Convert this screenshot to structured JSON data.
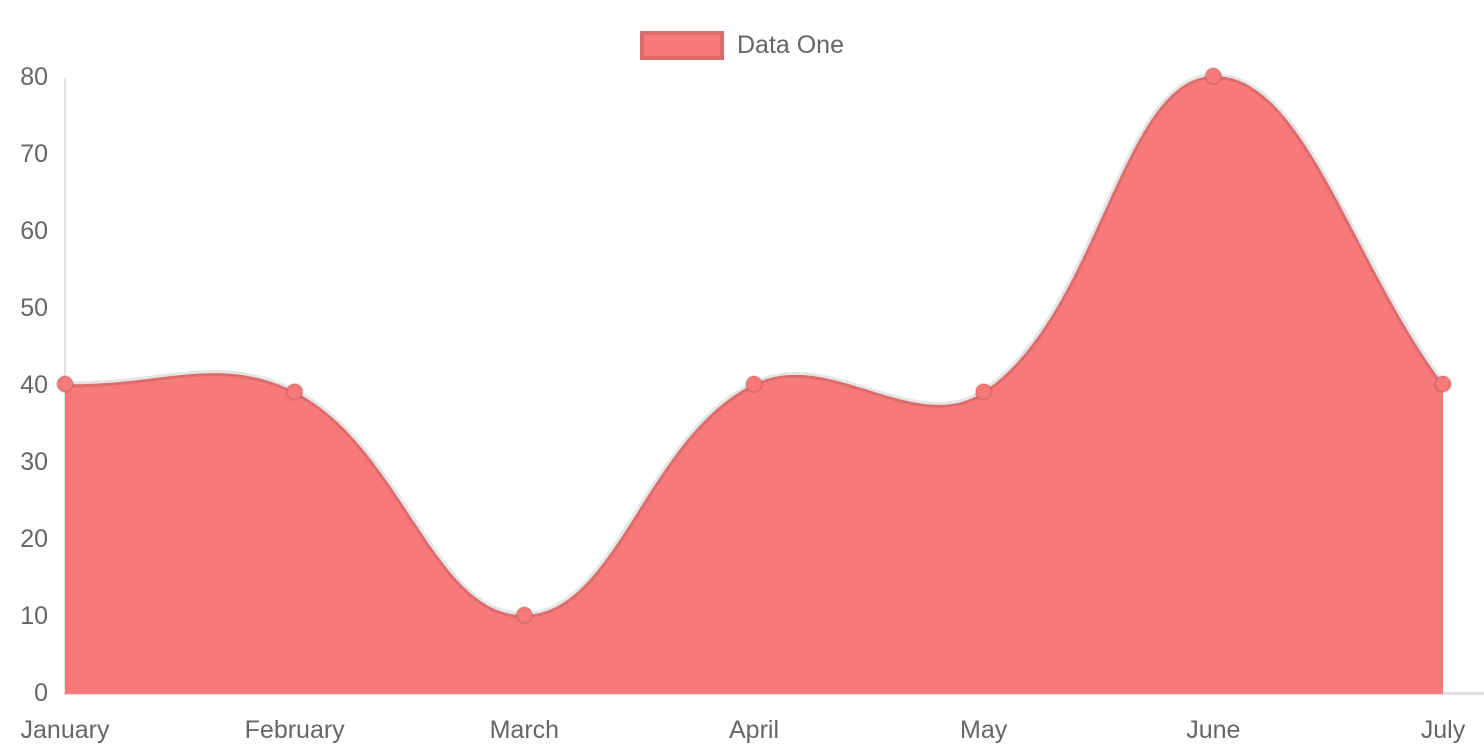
{
  "chart_data": {
    "type": "area",
    "title": "",
    "categories": [
      "January",
      "February",
      "March",
      "April",
      "May",
      "June",
      "July"
    ],
    "series": [
      {
        "name": "Data One",
        "values": [
          40,
          39,
          10,
          40,
          39,
          80,
          40
        ]
      }
    ],
    "xlabel": "",
    "ylabel": "",
    "ylim": [
      0,
      80
    ],
    "y_ticks": [
      0,
      10,
      20,
      30,
      40,
      50,
      60,
      70,
      80
    ],
    "grid": false,
    "legend_position": "top-center",
    "line_tension": 0.4
  },
  "legend": {
    "label": "Data One"
  },
  "colors": {
    "area_fill": "#f87979",
    "line_stroke": "rgba(0,0,0,0.1)",
    "point_fill": "#f87979",
    "point_stroke": "rgba(0,0,0,0.1)",
    "axis_line": "rgba(0,0,0,0.12)",
    "tick_text": "#666666",
    "legend_text": "#666666",
    "legend_swatch_border": "rgba(0,0,0,0.11)",
    "background": "#ffffff"
  }
}
